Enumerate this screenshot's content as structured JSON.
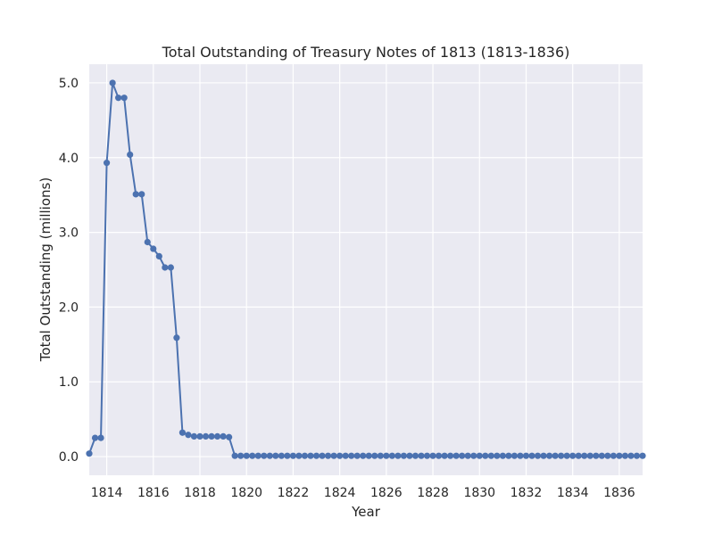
{
  "chart_data": {
    "type": "line",
    "title": "Total Outstanding of Treasury Notes of 1813 (1813-1836)",
    "xlabel": "Year",
    "ylabel": "Total Outstanding (millions)",
    "xlim": [
      1813.25,
      1837.0
    ],
    "ylim": [
      -0.25,
      5.25
    ],
    "xticks": [
      1814,
      1816,
      1818,
      1820,
      1822,
      1824,
      1826,
      1828,
      1830,
      1832,
      1834,
      1836
    ],
    "yticks": [
      0.0,
      1.0,
      2.0,
      3.0,
      4.0,
      5.0
    ],
    "ytick_labels": [
      "0.0",
      "1.0",
      "2.0",
      "3.0",
      "4.0",
      "5.0"
    ],
    "grid": true,
    "background": "#eaeaf2",
    "grid_color": "#ffffff",
    "series_color": "#4c72b0",
    "marker": "circle",
    "series": [
      {
        "x": [
          1813.25,
          1813.5,
          1813.75,
          1814.0,
          1814.25,
          1814.5,
          1814.75,
          1815.0,
          1815.25,
          1815.5,
          1815.75,
          1816.0,
          1816.25,
          1816.5,
          1816.75,
          1817.0,
          1817.25,
          1817.5,
          1817.75,
          1818.0,
          1818.25,
          1818.5,
          1818.75,
          1819.0,
          1819.25,
          1819.5,
          1819.75,
          1820.0,
          1820.25,
          1820.5,
          1820.75,
          1821.0,
          1821.25,
          1821.5,
          1821.75,
          1822.0,
          1822.25,
          1822.5,
          1822.75,
          1823.0,
          1823.25,
          1823.5,
          1823.75,
          1824.0,
          1824.25,
          1824.5,
          1824.75,
          1825.0,
          1825.25,
          1825.5,
          1825.75,
          1826.0,
          1826.25,
          1826.5,
          1826.75,
          1827.0,
          1827.25,
          1827.5,
          1827.75,
          1828.0,
          1828.25,
          1828.5,
          1828.75,
          1829.0,
          1829.25,
          1829.5,
          1829.75,
          1830.0,
          1830.25,
          1830.5,
          1830.75,
          1831.0,
          1831.25,
          1831.5,
          1831.75,
          1832.0,
          1832.25,
          1832.5,
          1832.75,
          1833.0,
          1833.25,
          1833.5,
          1833.75,
          1834.0,
          1834.25,
          1834.5,
          1834.75,
          1835.0,
          1835.25,
          1835.5,
          1835.75,
          1836.0,
          1836.25,
          1836.5,
          1836.75,
          1837.0
        ],
        "y": [
          0.04,
          0.25,
          0.25,
          3.93,
          5.0,
          4.8,
          4.8,
          4.04,
          3.51,
          3.51,
          2.87,
          2.78,
          2.68,
          2.53,
          2.53,
          1.59,
          0.32,
          0.29,
          0.27,
          0.27,
          0.27,
          0.27,
          0.27,
          0.27,
          0.26,
          0.01,
          0.01,
          0.01,
          0.01,
          0.01,
          0.01,
          0.01,
          0.01,
          0.01,
          0.01,
          0.01,
          0.01,
          0.01,
          0.01,
          0.01,
          0.01,
          0.01,
          0.01,
          0.01,
          0.01,
          0.01,
          0.01,
          0.01,
          0.01,
          0.01,
          0.01,
          0.01,
          0.01,
          0.01,
          0.01,
          0.01,
          0.01,
          0.01,
          0.01,
          0.01,
          0.01,
          0.01,
          0.01,
          0.01,
          0.01,
          0.01,
          0.01,
          0.01,
          0.01,
          0.01,
          0.01,
          0.01,
          0.01,
          0.01,
          0.01,
          0.01,
          0.01,
          0.01,
          0.01,
          0.01,
          0.01,
          0.01,
          0.01,
          0.01,
          0.01,
          0.01,
          0.01,
          0.01,
          0.01,
          0.01,
          0.01,
          0.01,
          0.01,
          0.01,
          0.01,
          0.01
        ]
      }
    ]
  }
}
